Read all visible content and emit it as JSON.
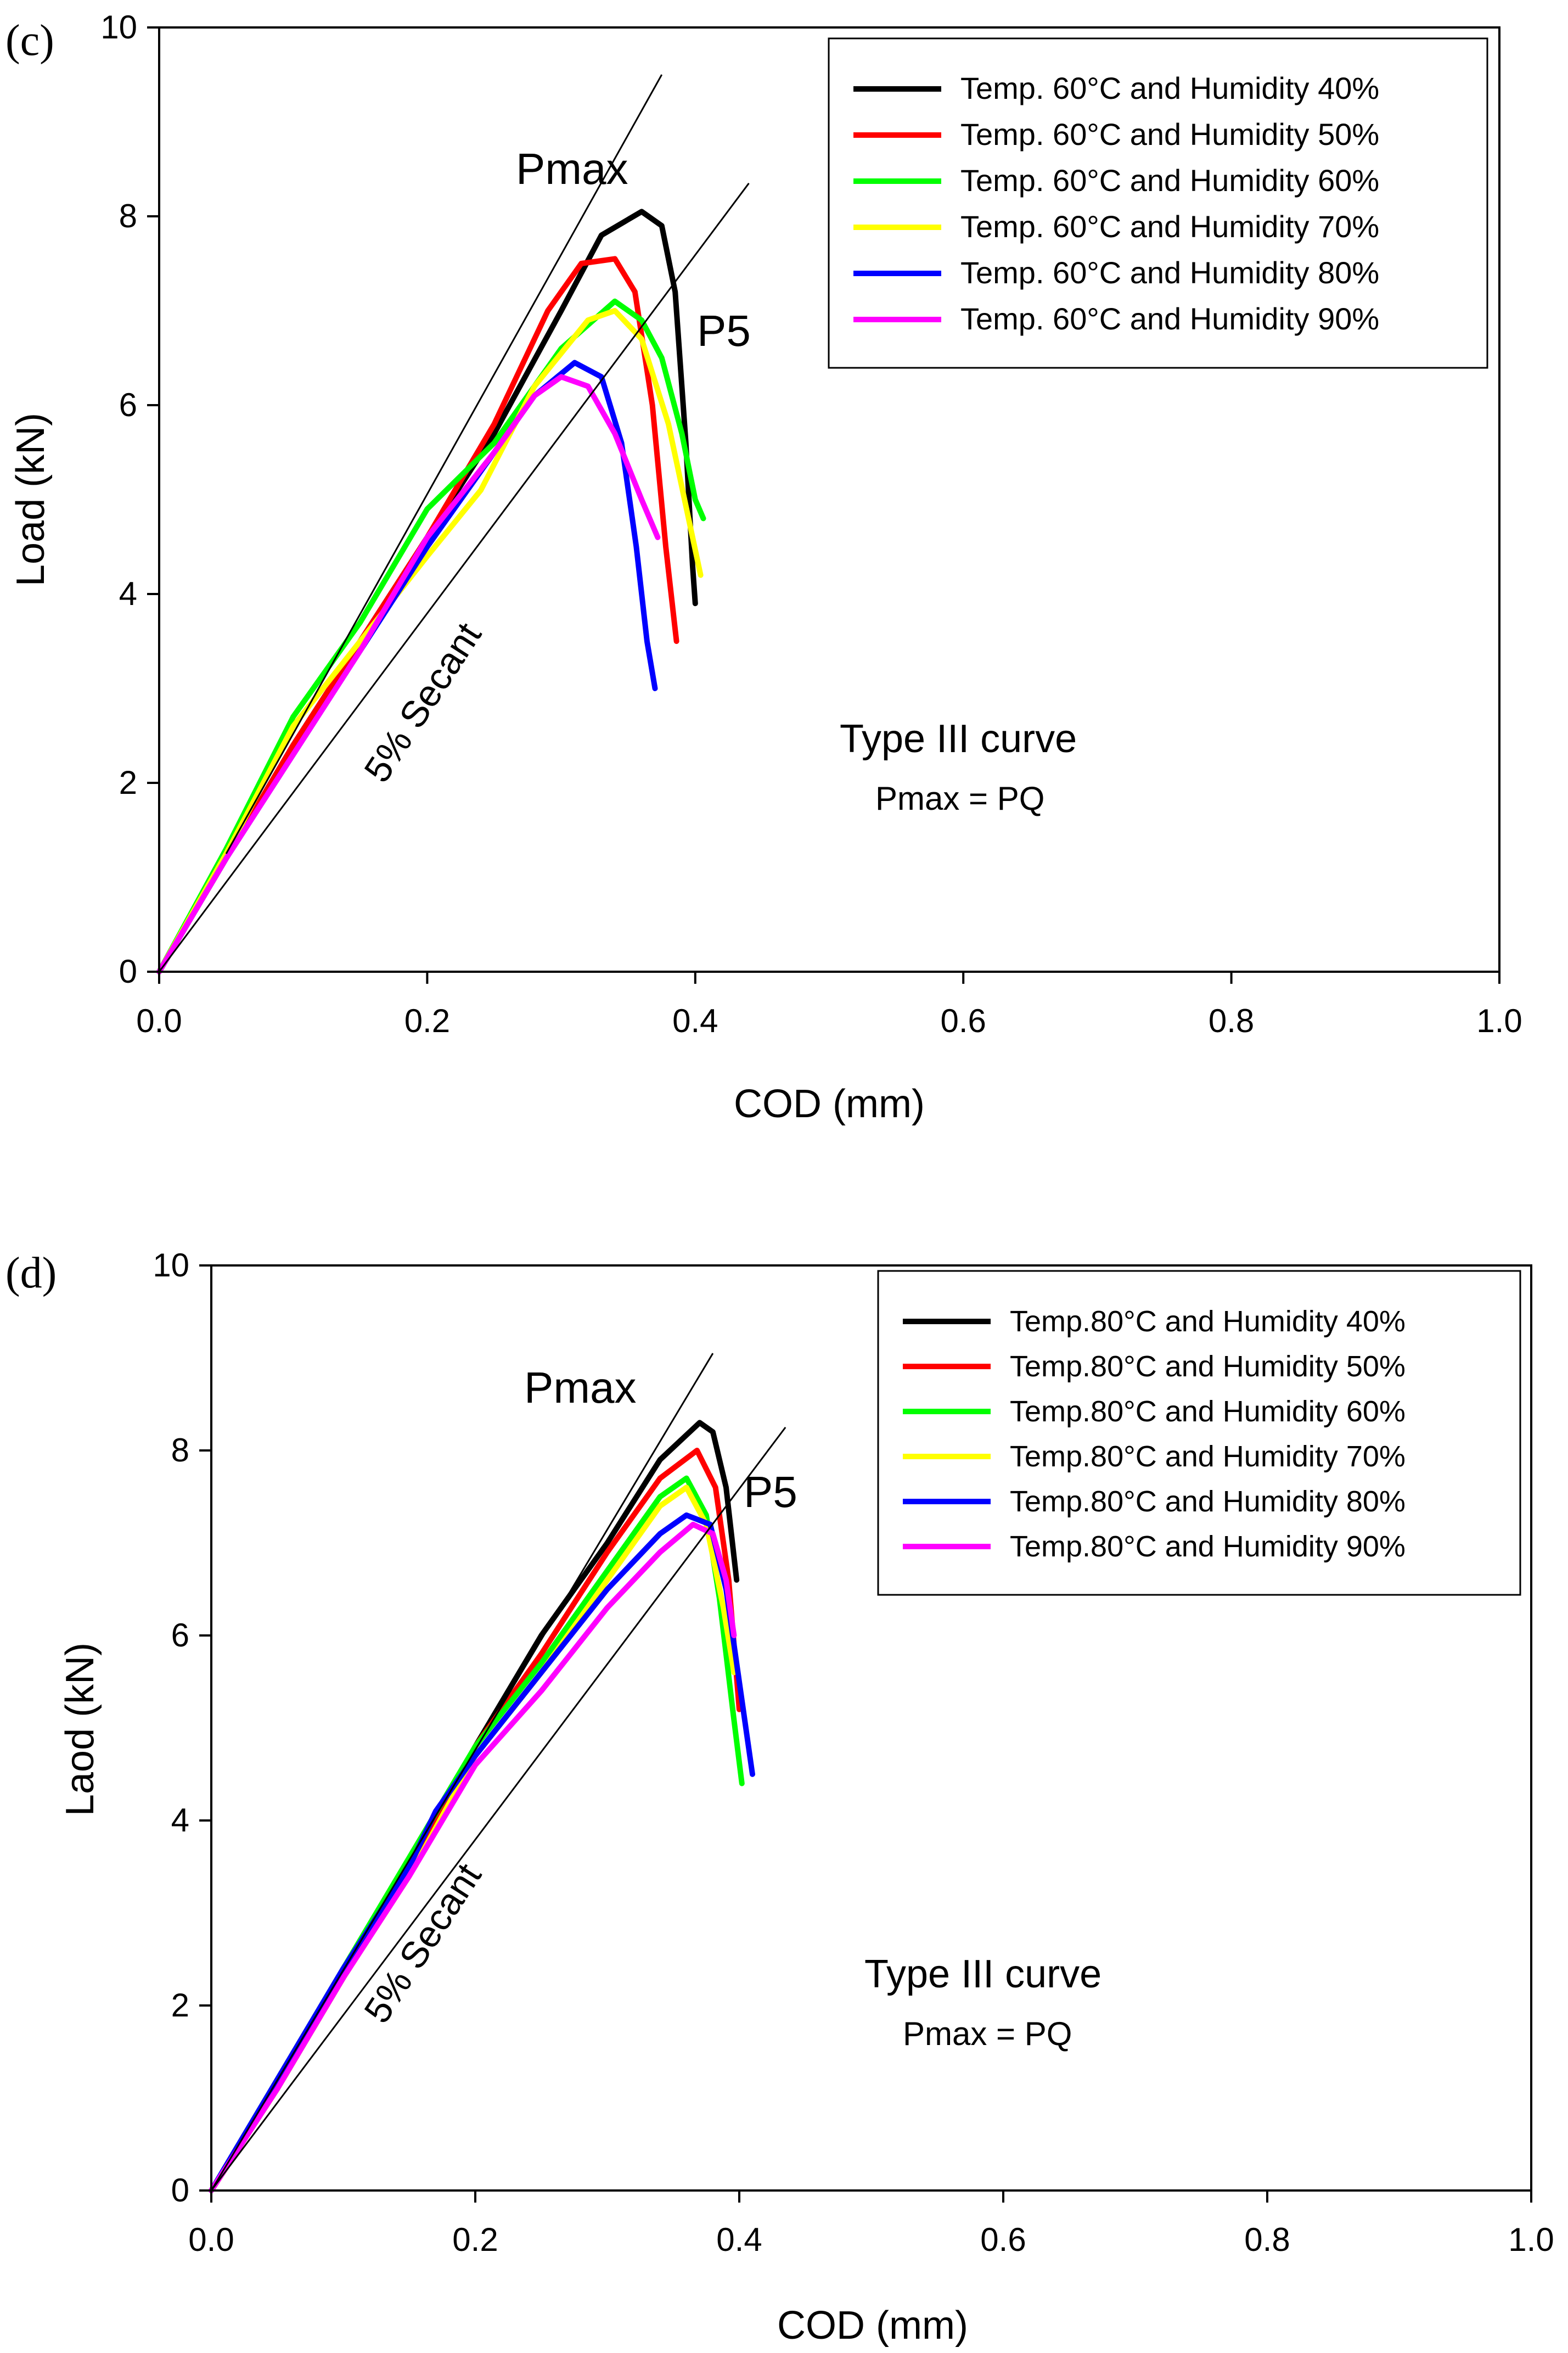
{
  "chart_data": [
    {
      "type": "line",
      "panel_label": "(c)",
      "xlabel": "COD (mm)",
      "ylabel": "Load (kN)",
      "xlim": [
        0,
        1.0
      ],
      "ylim": [
        0,
        10
      ],
      "x_ticks": [
        "0.0",
        "0.2",
        "0.4",
        "0.6",
        "0.8",
        "1.0"
      ],
      "y_ticks": [
        "0",
        "2",
        "4",
        "6",
        "8",
        "10"
      ],
      "legend_position": "top-right",
      "series": [
        {
          "name": "Temp. 60°C and Humidity 40%",
          "color": "#000000",
          "points": [
            [
              0,
              0
            ],
            [
              0.05,
              1.2
            ],
            [
              0.1,
              2.4
            ],
            [
              0.15,
              3.5
            ],
            [
              0.2,
              4.6
            ],
            [
              0.25,
              5.7
            ],
            [
              0.3,
              7.0
            ],
            [
              0.33,
              7.8
            ],
            [
              0.36,
              8.05
            ],
            [
              0.375,
              7.9
            ],
            [
              0.385,
              7.2
            ],
            [
              0.393,
              5.6
            ],
            [
              0.398,
              4.3
            ],
            [
              0.4,
              3.9
            ]
          ]
        },
        {
          "name": "Temp. 60°C and Humidity 50%",
          "color": "#ff0000",
          "points": [
            [
              0,
              0
            ],
            [
              0.05,
              1.2
            ],
            [
              0.1,
              2.4
            ],
            [
              0.15,
              3.5
            ],
            [
              0.2,
              4.6
            ],
            [
              0.25,
              5.8
            ],
            [
              0.29,
              7.0
            ],
            [
              0.315,
              7.5
            ],
            [
              0.34,
              7.55
            ],
            [
              0.355,
              7.2
            ],
            [
              0.368,
              6.0
            ],
            [
              0.378,
              4.5
            ],
            [
              0.386,
              3.5
            ]
          ]
        },
        {
          "name": "Temp. 60°C and Humidity 60%",
          "color": "#00ff00",
          "points": [
            [
              0,
              0
            ],
            [
              0.05,
              1.3
            ],
            [
              0.1,
              2.7
            ],
            [
              0.15,
              3.7
            ],
            [
              0.2,
              4.9
            ],
            [
              0.25,
              5.6
            ],
            [
              0.3,
              6.6
            ],
            [
              0.34,
              7.1
            ],
            [
              0.36,
              6.9
            ],
            [
              0.375,
              6.5
            ],
            [
              0.39,
              5.7
            ],
            [
              0.4,
              5.0
            ],
            [
              0.406,
              4.8
            ]
          ]
        },
        {
          "name": "Temp. 60°C and Humidity 70%",
          "color": "#ffff00",
          "points": [
            [
              0,
              0
            ],
            [
              0.05,
              1.25
            ],
            [
              0.1,
              2.6
            ],
            [
              0.15,
              3.5
            ],
            [
              0.2,
              4.4
            ],
            [
              0.24,
              5.1
            ],
            [
              0.28,
              6.2
            ],
            [
              0.32,
              6.9
            ],
            [
              0.34,
              7.0
            ],
            [
              0.36,
              6.7
            ],
            [
              0.38,
              5.8
            ],
            [
              0.395,
              4.8
            ],
            [
              0.404,
              4.2
            ]
          ]
        },
        {
          "name": "Temp. 60°C and Humidity 80%",
          "color": "#0000ff",
          "points": [
            [
              0,
              0
            ],
            [
              0.05,
              1.2
            ],
            [
              0.1,
              2.3
            ],
            [
              0.15,
              3.4
            ],
            [
              0.2,
              4.5
            ],
            [
              0.25,
              5.5
            ],
            [
              0.28,
              6.1
            ],
            [
              0.31,
              6.45
            ],
            [
              0.33,
              6.3
            ],
            [
              0.345,
              5.6
            ],
            [
              0.356,
              4.5
            ],
            [
              0.364,
              3.5
            ],
            [
              0.37,
              3.0
            ]
          ]
        },
        {
          "name": "Temp. 60°C and Humidity 90%",
          "color": "#ff00ff",
          "points": [
            [
              0,
              0
            ],
            [
              0.05,
              1.2
            ],
            [
              0.1,
              2.3
            ],
            [
              0.15,
              3.4
            ],
            [
              0.2,
              4.6
            ],
            [
              0.25,
              5.5
            ],
            [
              0.28,
              6.1
            ],
            [
              0.3,
              6.3
            ],
            [
              0.32,
              6.2
            ],
            [
              0.34,
              5.7
            ],
            [
              0.36,
              5.0
            ],
            [
              0.372,
              4.6
            ]
          ]
        }
      ],
      "annotations": {
        "pmax": "Pmax",
        "p5": "P5",
        "secant": "5% Secant",
        "curve_type": "Type III curve",
        "equation": "Pmax = PQ"
      }
    },
    {
      "type": "line",
      "panel_label": "(d)",
      "xlabel": "COD (mm)",
      "ylabel": "Laod (kN)",
      "xlim": [
        0,
        1.0
      ],
      "ylim": [
        0,
        10
      ],
      "x_ticks": [
        "0.0",
        "0.2",
        "0.4",
        "0.6",
        "0.8",
        "1.0"
      ],
      "y_ticks": [
        "0",
        "2",
        "4",
        "6",
        "8",
        "10"
      ],
      "legend_position": "top-right",
      "series": [
        {
          "name": "Temp.80°C and Humidity 40%",
          "color": "#000000",
          "points": [
            [
              0,
              0
            ],
            [
              0.05,
              1.1
            ],
            [
              0.1,
              2.3
            ],
            [
              0.15,
              3.5
            ],
            [
              0.2,
              4.8
            ],
            [
              0.25,
              6.0
            ],
            [
              0.3,
              7.0
            ],
            [
              0.34,
              7.9
            ],
            [
              0.37,
              8.3
            ],
            [
              0.38,
              8.2
            ],
            [
              0.39,
              7.6
            ],
            [
              0.398,
              6.6
            ]
          ]
        },
        {
          "name": "Temp.80°C and Humidity 50%",
          "color": "#ff0000",
          "points": [
            [
              0,
              0
            ],
            [
              0.05,
              1.1
            ],
            [
              0.1,
              2.3
            ],
            [
              0.15,
              3.5
            ],
            [
              0.2,
              4.8
            ],
            [
              0.25,
              5.8
            ],
            [
              0.3,
              6.9
            ],
            [
              0.34,
              7.7
            ],
            [
              0.368,
              8.0
            ],
            [
              0.382,
              7.6
            ],
            [
              0.392,
              6.6
            ],
            [
              0.4,
              5.2
            ]
          ]
        },
        {
          "name": "Temp.80°C and Humidity 60%",
          "color": "#00ff00",
          "points": [
            [
              0,
              0
            ],
            [
              0.05,
              1.2
            ],
            [
              0.1,
              2.4
            ],
            [
              0.15,
              3.6
            ],
            [
              0.2,
              4.8
            ],
            [
              0.25,
              5.7
            ],
            [
              0.3,
              6.7
            ],
            [
              0.34,
              7.5
            ],
            [
              0.36,
              7.7
            ],
            [
              0.375,
              7.3
            ],
            [
              0.385,
              6.4
            ],
            [
              0.395,
              5.2
            ],
            [
              0.402,
              4.4
            ]
          ]
        },
        {
          "name": "Temp.80°C and Humidity 70%",
          "color": "#ffff00",
          "points": [
            [
              0,
              0
            ],
            [
              0.05,
              1.1
            ],
            [
              0.1,
              2.3
            ],
            [
              0.15,
              3.4
            ],
            [
              0.2,
              4.7
            ],
            [
              0.25,
              5.6
            ],
            [
              0.3,
              6.6
            ],
            [
              0.34,
              7.4
            ],
            [
              0.36,
              7.6
            ],
            [
              0.375,
              7.2
            ],
            [
              0.388,
              6.3
            ],
            [
              0.396,
              5.6
            ]
          ]
        },
        {
          "name": "Temp.80°C and Humidity 80%",
          "color": "#0000ff",
          "points": [
            [
              0,
              0
            ],
            [
              0.05,
              1.2
            ],
            [
              0.1,
              2.4
            ],
            [
              0.15,
              3.5
            ],
            [
              0.17,
              4.1
            ],
            [
              0.2,
              4.7
            ],
            [
              0.25,
              5.6
            ],
            [
              0.3,
              6.5
            ],
            [
              0.34,
              7.1
            ],
            [
              0.36,
              7.3
            ],
            [
              0.378,
              7.2
            ],
            [
              0.39,
              6.5
            ],
            [
              0.4,
              5.5
            ],
            [
              0.41,
              4.5
            ]
          ]
        },
        {
          "name": "Temp.80°C and Humidity 90%",
          "color": "#ff00ff",
          "points": [
            [
              0,
              0
            ],
            [
              0.05,
              1.1
            ],
            [
              0.1,
              2.3
            ],
            [
              0.15,
              3.4
            ],
            [
              0.2,
              4.6
            ],
            [
              0.25,
              5.4
            ],
            [
              0.3,
              6.3
            ],
            [
              0.34,
              6.9
            ],
            [
              0.365,
              7.2
            ],
            [
              0.38,
              7.1
            ],
            [
              0.39,
              6.6
            ],
            [
              0.396,
              6.0
            ]
          ]
        }
      ],
      "annotations": {
        "pmax": "Pmax",
        "p5": "P5",
        "secant": "5% Secant",
        "curve_type": "Type III curve",
        "equation": "Pmax = PQ"
      }
    }
  ]
}
